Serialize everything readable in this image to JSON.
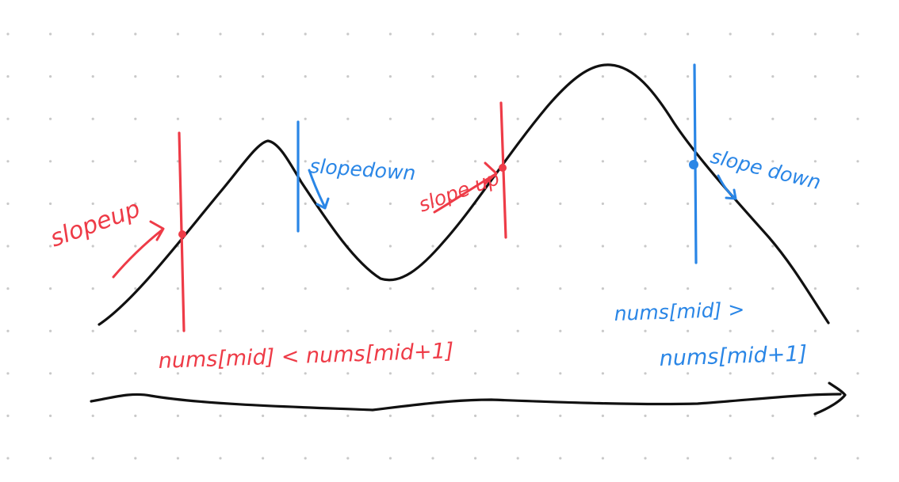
{
  "colors": {
    "ink": "#111111",
    "red": "#ee3b47",
    "blue": "#2a86e6",
    "grid_dot": "#c9c9c9",
    "background": "#ffffff"
  },
  "annotations": {
    "slope_up_left": "slopeup",
    "slope_down_left": "slopedown",
    "slope_up_right": "slope up",
    "slope_down_right": "slope down",
    "condition_less": "nums[mid] < nums[mid+1]",
    "condition_greater_line1": "nums[mid] >",
    "condition_greater_line2": "nums[mid+1]"
  },
  "icons": {
    "x_axis": "axis-arrow-icon",
    "arrows": "curved-arrow-icon"
  }
}
